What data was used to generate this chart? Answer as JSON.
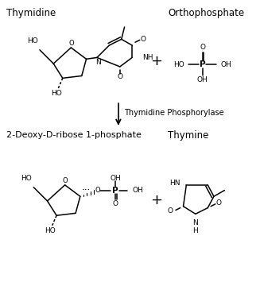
{
  "bg_color": "#ffffff",
  "text_color": "#000000",
  "label_thymidine": "Thymidine",
  "label_orthophosphate": "Orthophosphate",
  "label_enzyme": "Thymidine Phosphorylase",
  "label_deoxy": "2-Deoxy-D-ribose 1-phosphate",
  "label_thymine": "Thymine",
  "font_label": 8.5,
  "font_struct": 6.5,
  "lw": 1.1
}
